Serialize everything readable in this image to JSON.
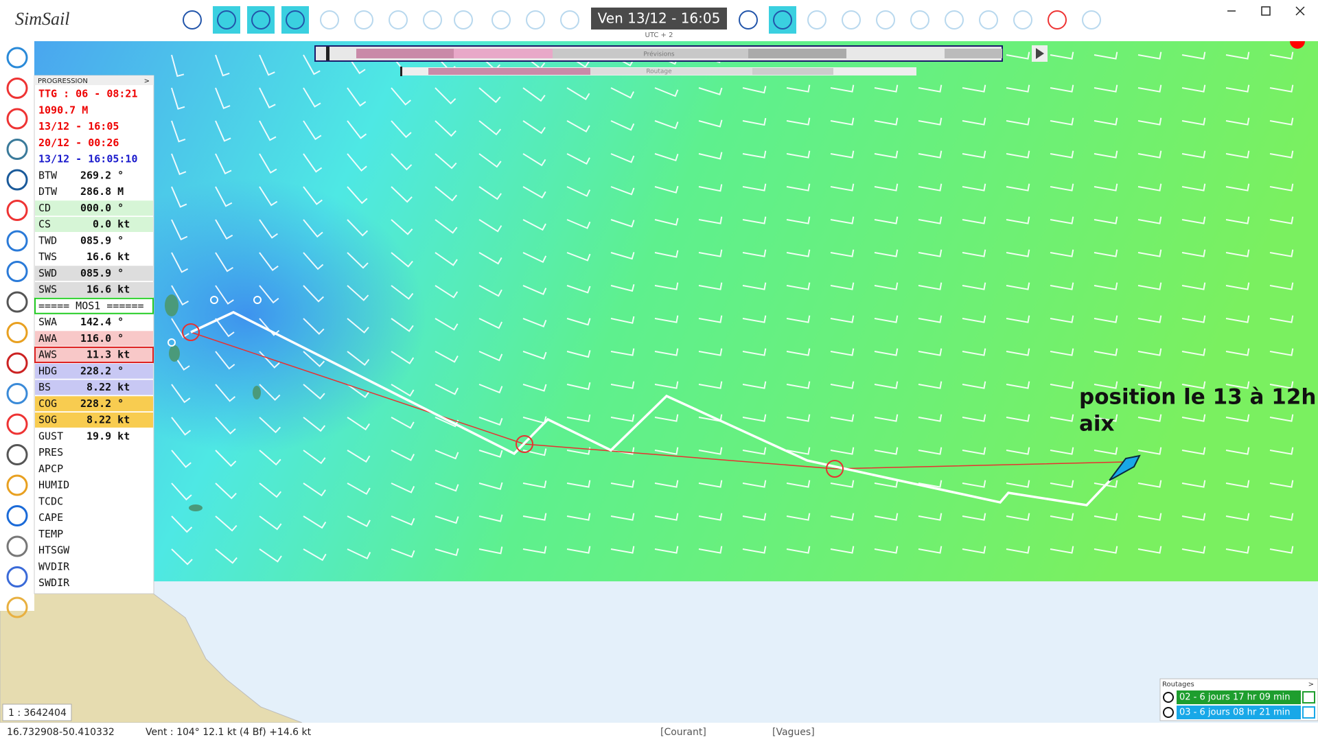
{
  "app": {
    "title": "SimSail"
  },
  "toolbar": {
    "date": "Ven 13/12 - 16:05",
    "timezone": "UTC + 2",
    "forecast_bar": "Prévisions",
    "routing_bar": "Routage"
  },
  "panel": {
    "header": "PROGRESSION",
    "toggle": ">",
    "lines": [
      "TTG : 06 - 08:21",
      "1090.7 M",
      "13/12 - 16:05",
      "20/12 - 00:26",
      "13/12 - 16:05:10"
    ],
    "rows": [
      {
        "label": "BTW",
        "value": "269.2 °"
      },
      {
        "label": "DTW",
        "value": "286.8 M"
      },
      {
        "label": "CD",
        "value": "000.0 °"
      },
      {
        "label": "CS",
        "value": "  0.0 kt"
      },
      {
        "label": "TWD",
        "value": "085.9 °"
      },
      {
        "label": "TWS",
        "value": " 16.6 kt"
      },
      {
        "label": "SWD",
        "value": "085.9 °"
      },
      {
        "label": "SWS",
        "value": " 16.6 kt"
      },
      {
        "label": "===== MOS1 ======"
      },
      {
        "label": "SWA",
        "value": "142.4 °"
      },
      {
        "label": "AWA",
        "value": "116.0 °"
      },
      {
        "label": "AWS",
        "value": " 11.3 kt"
      },
      {
        "label": "HDG",
        "value": "228.2 °"
      },
      {
        "label": "BS",
        "value": " 8.22 kt"
      },
      {
        "label": "COG",
        "value": "228.2 °"
      },
      {
        "label": "SOG",
        "value": " 8.22 kt"
      },
      {
        "label": "GUST",
        "value": " 19.9 kt"
      },
      {
        "label": "PRES"
      },
      {
        "label": "APCP"
      },
      {
        "label": "HUMID"
      },
      {
        "label": "TCDC"
      },
      {
        "label": "CAPE"
      },
      {
        "label": "TEMP"
      },
      {
        "label": "HTSGW"
      },
      {
        "label": "WVDIR"
      },
      {
        "label": "SWDIR"
      }
    ]
  },
  "map": {
    "annotation": [
      "position le 13 à 12h",
      "aix"
    ],
    "scale": "1 : 3642404"
  },
  "status": {
    "lat": "16.732908",
    "lon": "-50.410332",
    "wind": "Vent : 104° 12.1 kt (4 Bf) +14.6 kt",
    "current": "[Courant]",
    "waves": "[Vagues]"
  },
  "routings": {
    "title": "Routages",
    "toggle": ">",
    "items": [
      "02 - 6 jours 17 hr 09 min",
      "03 - 6 jours 08 hr 21 min"
    ]
  }
}
